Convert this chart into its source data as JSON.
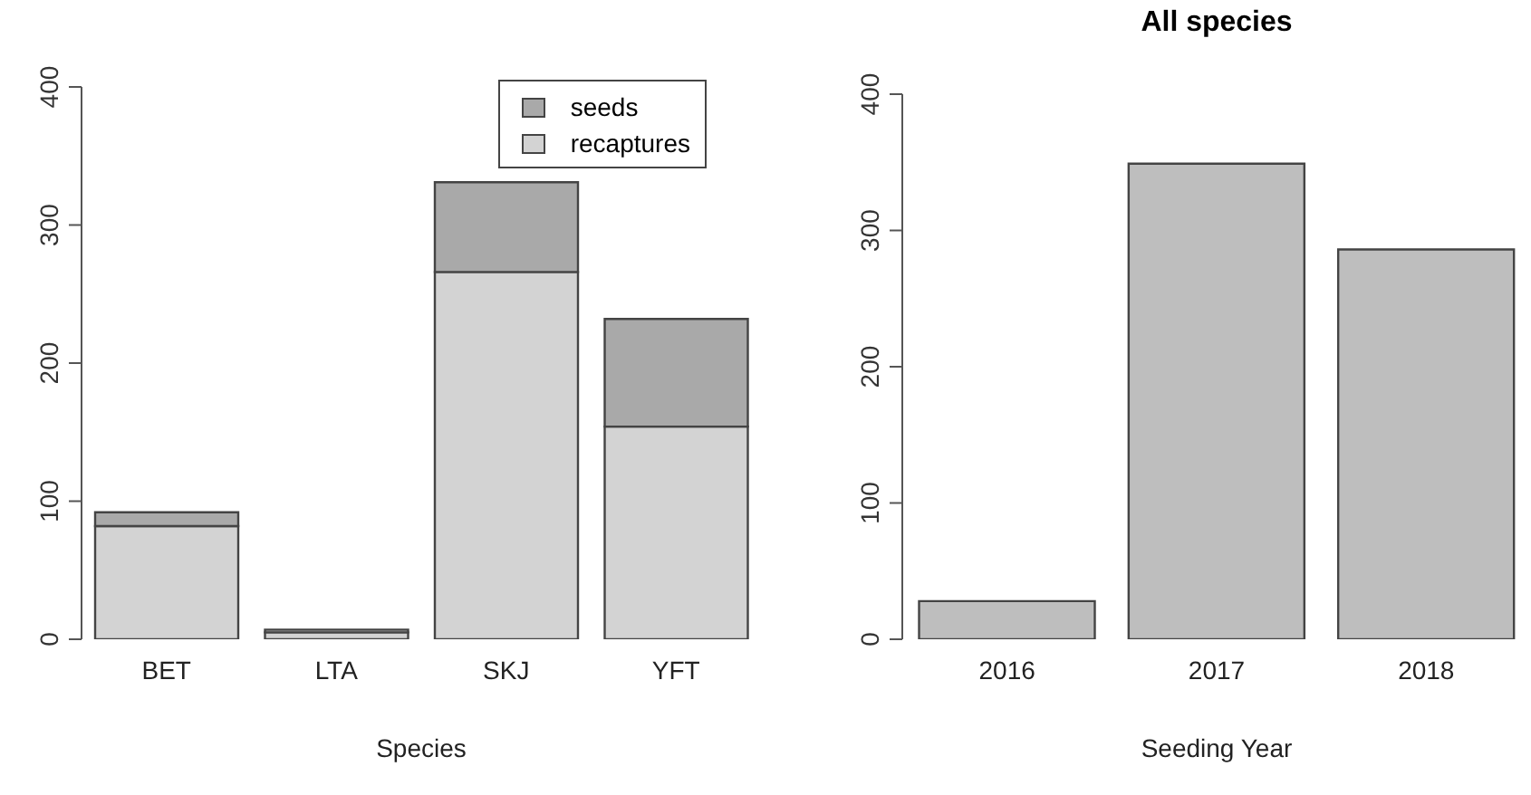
{
  "chart_data": [
    {
      "type": "bar",
      "stacked": true,
      "xlabel": "Species",
      "categories": [
        "BET",
        "LTA",
        "SKJ",
        "YFT"
      ],
      "series": [
        {
          "name": "recaptures",
          "color": "#d3d3d3",
          "values": [
            82,
            5,
            266,
            154
          ]
        },
        {
          "name": "seeds",
          "color": "#a9a9a9",
          "values": [
            10,
            2,
            65,
            78
          ]
        }
      ],
      "ylim": [
        0,
        400
      ],
      "yticks": [
        0,
        100,
        200,
        300,
        400
      ],
      "legend": "top right"
    },
    {
      "type": "bar",
      "title": "All species",
      "xlabel": "Seeding Year",
      "categories": [
        "2016",
        "2017",
        "2018"
      ],
      "values": [
        28,
        349,
        286
      ],
      "color": "#bebebe",
      "ylim": [
        0,
        400
      ],
      "yticks": [
        0,
        100,
        200,
        300,
        400
      ]
    }
  ]
}
